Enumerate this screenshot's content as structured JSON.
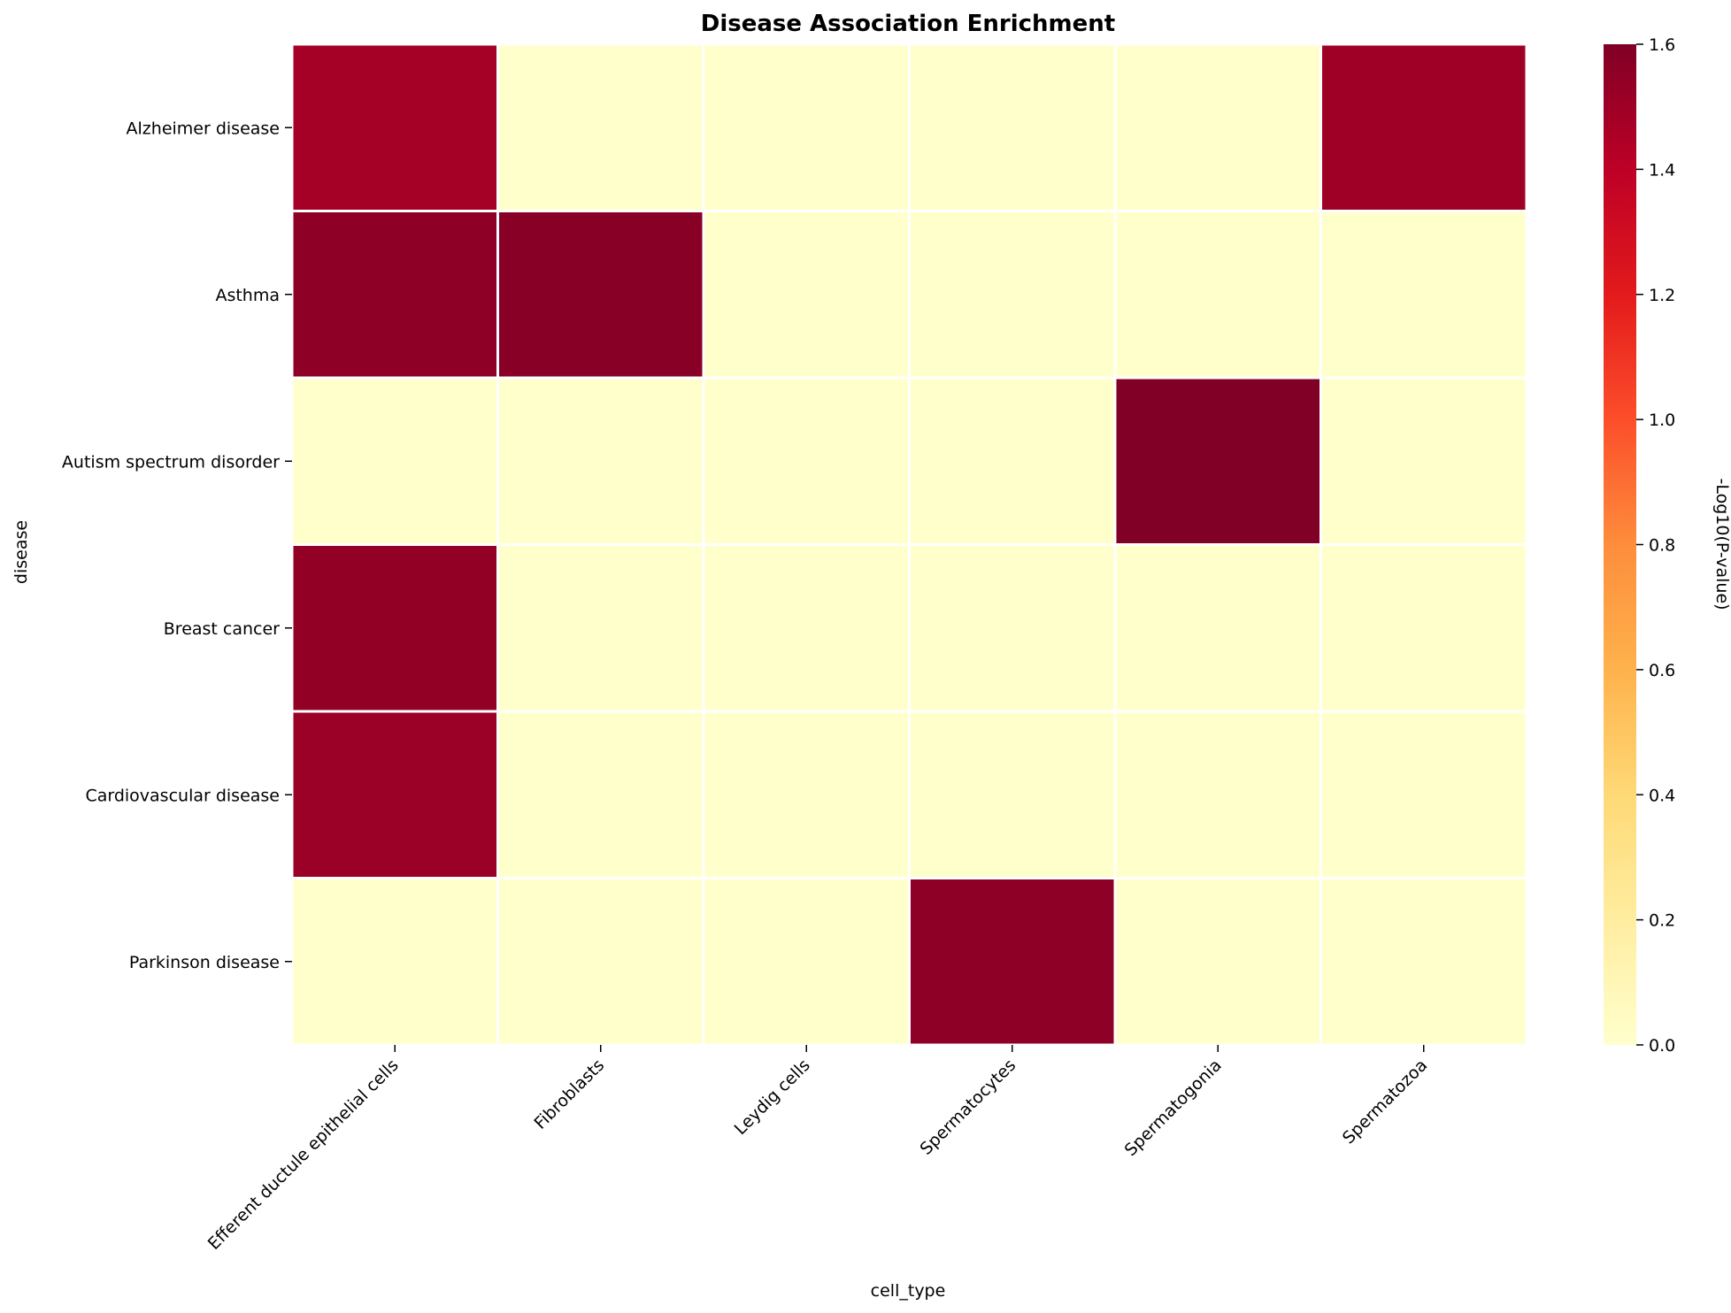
{
  "chart_data": {
    "type": "heatmap",
    "title": "Disease Association Enrichment",
    "xlabel": "cell_type",
    "ylabel": "disease",
    "colorbar_label": "-Log10(P-value)",
    "colormap": "YlOrRd",
    "vmin": 0.0,
    "vmax": 1.6,
    "colorbar_ticks": [
      "0.0",
      "0.2",
      "0.4",
      "0.6",
      "0.8",
      "1.0",
      "1.2",
      "1.4",
      "1.6"
    ],
    "columns": [
      "Efferent ductule epithelial cells",
      "Fibroblasts",
      "Leydig cells",
      "Spermatocytes",
      "Spermatogonia",
      "Spermatozoa"
    ],
    "rows": [
      "Alzheimer disease",
      "Asthma",
      "Autism spectrum disorder",
      "Breast cancer",
      "Cardiovascular disease",
      "Parkinson disease"
    ],
    "values": [
      [
        1.48,
        0.0,
        0.0,
        0.0,
        0.0,
        1.5
      ],
      [
        1.55,
        1.57,
        0.0,
        0.0,
        0.0,
        0.0
      ],
      [
        0.0,
        0.0,
        0.0,
        0.0,
        1.61,
        0.0
      ],
      [
        1.54,
        0.0,
        0.0,
        0.0,
        0.0,
        0.0
      ],
      [
        1.51,
        0.0,
        0.0,
        0.0,
        0.0,
        0.0
      ],
      [
        0.0,
        0.0,
        0.0,
        1.55,
        0.0,
        0.0
      ]
    ]
  }
}
